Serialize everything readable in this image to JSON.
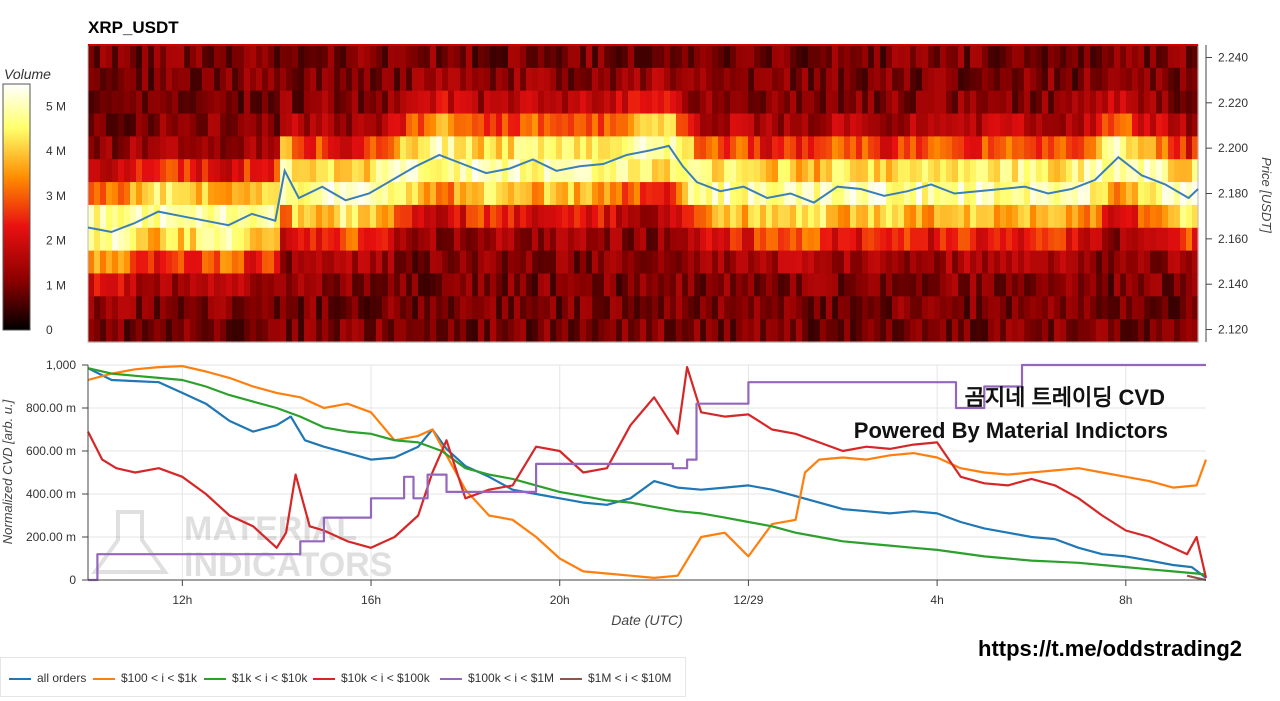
{
  "title": "XRP_USDT",
  "overlay_line1": "곰지네 트레이딩 CVD",
  "overlay_line2": "Powered By Material Indictors",
  "footer_link": "https://t.me/oddstrading2",
  "watermark": [
    "MATERIAL",
    "INDICATORS"
  ],
  "colors": {
    "all_orders": "#1f77b4",
    "tier1": "#ff7f0e",
    "tier2": "#2ca02c",
    "tier3": "#d62728",
    "tier4": "#9467bd",
    "tier5": "#8c564b",
    "price": "#3b7fb8"
  },
  "chart_data": [
    {
      "type": "heatmap",
      "title": "XRP_USDT",
      "colorbar": {
        "label": "Volume",
        "ticks": [
          "0",
          "1 M",
          "2 M",
          "3 M",
          "4 M",
          "5 M"
        ],
        "range": [
          0,
          5500000
        ],
        "colormap": [
          "#000000",
          "#8b0000",
          "#e81010",
          "#ff8c00",
          "#ffff6b",
          "#ffffff"
        ]
      },
      "y_axis": {
        "label": "Price [USDT]",
        "ticks": [
          "2.120",
          "2.140",
          "2.160",
          "2.180",
          "2.200",
          "2.220",
          "2.240"
        ],
        "range": [
          2.1145,
          2.2455
        ]
      },
      "price_series": {
        "x_hours": [
          10.0,
          10.5,
          11.0,
          11.5,
          12.0,
          12.5,
          13.0,
          13.5,
          14.0,
          14.2,
          14.5,
          15.0,
          15.5,
          16.0,
          16.5,
          17.0,
          17.5,
          18.0,
          18.5,
          19.0,
          19.5,
          20.0,
          20.5,
          21.0,
          21.5,
          22.0,
          22.4,
          22.7,
          23.0,
          23.5,
          24.0,
          24.5,
          25.0,
          25.5,
          26.0,
          26.5,
          27.0,
          27.5,
          28.0,
          28.5,
          29.0,
          29.5,
          30.0,
          30.5,
          31.0,
          31.5,
          32.0,
          32.5,
          33.0,
          33.5,
          33.7
        ],
        "prices": [
          2.165,
          2.163,
          2.167,
          2.172,
          2.17,
          2.168,
          2.166,
          2.171,
          2.168,
          2.19,
          2.178,
          2.183,
          2.177,
          2.18,
          2.186,
          2.192,
          2.197,
          2.193,
          2.189,
          2.191,
          2.195,
          2.19,
          2.192,
          2.193,
          2.197,
          2.199,
          2.201,
          2.192,
          2.185,
          2.181,
          2.183,
          2.178,
          2.18,
          2.176,
          2.183,
          2.182,
          2.179,
          2.181,
          2.184,
          2.18,
          2.181,
          2.182,
          2.183,
          2.18,
          2.182,
          2.186,
          2.196,
          2.188,
          2.184,
          2.178,
          2.182
        ]
      }
    },
    {
      "type": "line",
      "xlabel": "Date (UTC)",
      "ylabel": "Normalized CVD [arb. u.]",
      "x_range_hours": [
        10.0,
        33.7
      ],
      "ylim": [
        0,
        1000
      ],
      "x_ticks": [
        {
          "hour": 12,
          "label": "12h"
        },
        {
          "hour": 16,
          "label": "16h"
        },
        {
          "hour": 20,
          "label": "20h"
        },
        {
          "hour": 24,
          "label": "12/29"
        },
        {
          "hour": 28,
          "label": "4h"
        },
        {
          "hour": 32,
          "label": "8h"
        }
      ],
      "y_ticks": [
        {
          "value": 0,
          "label": "0"
        },
        {
          "value": 200,
          "label": "200.00 m"
        },
        {
          "value": 400,
          "label": "400.00 m"
        },
        {
          "value": 600,
          "label": "600.00 m"
        },
        {
          "value": 800,
          "label": "800.00 m"
        },
        {
          "value": 1000,
          "label": "1,000"
        }
      ],
      "series": [
        {
          "name": "all orders",
          "x": [
            10.0,
            10.5,
            11.0,
            11.5,
            12.0,
            12.5,
            13.0,
            13.5,
            14.0,
            14.3,
            14.6,
            15.0,
            15.5,
            16.0,
            16.5,
            17.0,
            17.3,
            17.6,
            18.0,
            18.5,
            19.0,
            19.5,
            20.0,
            20.5,
            21.0,
            21.5,
            22.0,
            22.5,
            23.0,
            23.5,
            24.0,
            24.5,
            25.0,
            25.5,
            26.0,
            26.5,
            27.0,
            27.5,
            28.0,
            28.5,
            29.0,
            29.5,
            30.0,
            30.5,
            31.0,
            31.5,
            32.0,
            32.5,
            33.0,
            33.4,
            33.7
          ],
          "y": [
            985,
            930,
            925,
            920,
            870,
            820,
            740,
            690,
            720,
            760,
            650,
            620,
            590,
            560,
            570,
            620,
            700,
            610,
            530,
            480,
            420,
            400,
            380,
            360,
            350,
            380,
            460,
            430,
            420,
            430,
            440,
            420,
            390,
            360,
            330,
            320,
            310,
            320,
            310,
            270,
            240,
            220,
            200,
            190,
            150,
            120,
            110,
            90,
            70,
            60,
            10
          ]
        },
        {
          "name": "$100 < i < $1k",
          "x": [
            10.0,
            10.5,
            11.0,
            11.5,
            12.0,
            12.5,
            13.0,
            13.5,
            14.0,
            14.5,
            15.0,
            15.5,
            16.0,
            16.5,
            17.0,
            17.3,
            17.6,
            18.0,
            18.5,
            19.0,
            19.5,
            20.0,
            20.5,
            21.0,
            21.5,
            22.0,
            22.5,
            23.0,
            23.5,
            24.0,
            24.5,
            25.0,
            25.2,
            25.5,
            26.0,
            26.5,
            27.0,
            27.5,
            28.0,
            28.5,
            29.0,
            29.5,
            30.0,
            30.5,
            31.0,
            31.5,
            32.0,
            32.5,
            33.0,
            33.5,
            33.7
          ],
          "y": [
            930,
            960,
            980,
            990,
            995,
            970,
            940,
            900,
            870,
            850,
            800,
            820,
            780,
            650,
            670,
            700,
            580,
            420,
            300,
            280,
            200,
            100,
            40,
            30,
            20,
            10,
            20,
            200,
            220,
            110,
            260,
            280,
            500,
            560,
            570,
            560,
            580,
            590,
            570,
            520,
            500,
            490,
            500,
            510,
            520,
            500,
            480,
            460,
            430,
            440,
            560
          ]
        },
        {
          "name": "$1k < i < $10k",
          "x": [
            10.0,
            10.5,
            11.0,
            11.5,
            12.0,
            12.5,
            13.0,
            13.5,
            14.0,
            14.5,
            15.0,
            15.5,
            16.0,
            16.5,
            17.0,
            17.5,
            18.0,
            18.5,
            19.0,
            19.5,
            20.0,
            20.5,
            21.0,
            21.5,
            22.0,
            22.5,
            23.0,
            23.5,
            24.0,
            24.5,
            25.0,
            25.5,
            26.0,
            26.5,
            27.0,
            27.5,
            28.0,
            28.5,
            29.0,
            29.5,
            30.0,
            30.5,
            31.0,
            31.5,
            32.0,
            32.5,
            33.0,
            33.5,
            33.7
          ],
          "y": [
            985,
            960,
            950,
            940,
            930,
            900,
            860,
            830,
            800,
            760,
            710,
            690,
            680,
            650,
            640,
            600,
            520,
            490,
            470,
            440,
            410,
            390,
            370,
            360,
            340,
            320,
            310,
            290,
            270,
            250,
            220,
            200,
            180,
            170,
            160,
            150,
            140,
            125,
            110,
            100,
            90,
            85,
            80,
            70,
            60,
            50,
            40,
            30,
            25
          ]
        },
        {
          "name": "$10k < i < $100k",
          "x": [
            10.0,
            10.3,
            10.6,
            11.0,
            11.5,
            12.0,
            12.5,
            13.0,
            13.5,
            14.0,
            14.2,
            14.4,
            14.7,
            15.0,
            15.5,
            16.0,
            16.5,
            17.0,
            17.3,
            17.6,
            18.0,
            18.5,
            19.0,
            19.5,
            20.0,
            20.5,
            21.0,
            21.5,
            22.0,
            22.5,
            22.7,
            23.0,
            23.5,
            24.0,
            24.5,
            25.0,
            25.5,
            26.0,
            26.5,
            27.0,
            27.5,
            28.0,
            28.5,
            29.0,
            29.5,
            30.0,
            30.5,
            31.0,
            31.5,
            32.0,
            32.5,
            33.0,
            33.3,
            33.5,
            33.7
          ],
          "y": [
            690,
            560,
            520,
            500,
            520,
            480,
            400,
            300,
            250,
            150,
            220,
            490,
            250,
            230,
            180,
            150,
            200,
            300,
            500,
            650,
            380,
            420,
            440,
            620,
            600,
            500,
            520,
            720,
            850,
            680,
            990,
            780,
            760,
            770,
            700,
            680,
            640,
            600,
            620,
            610,
            630,
            640,
            480,
            450,
            440,
            470,
            440,
            380,
            300,
            230,
            200,
            150,
            120,
            200,
            10
          ]
        },
        {
          "name": "$100k < i < $1M",
          "x": [
            10.0,
            10.2,
            10.2,
            14.5,
            14.5,
            15.0,
            15.0,
            16.0,
            16.0,
            16.7,
            16.7,
            16.9,
            16.9,
            17.2,
            17.2,
            17.6,
            17.6,
            19.5,
            19.5,
            20.0,
            20.0,
            22.4,
            22.4,
            22.7,
            22.7,
            22.9,
            22.9,
            24.0,
            24.0,
            28.4,
            28.4,
            29.0,
            29.0,
            29.8,
            29.8,
            33.7
          ],
          "y": [
            0,
            0,
            120,
            120,
            180,
            180,
            290,
            290,
            380,
            380,
            480,
            480,
            380,
            380,
            490,
            490,
            410,
            410,
            540,
            540,
            540,
            540,
            520,
            520,
            560,
            560,
            820,
            820,
            920,
            920,
            800,
            800,
            900,
            900,
            1000,
            1000
          ]
        },
        {
          "name": "$1M < i < $10M",
          "x": [
            33.3,
            33.5,
            33.7
          ],
          "y": [
            20,
            10,
            0
          ]
        }
      ]
    }
  ]
}
